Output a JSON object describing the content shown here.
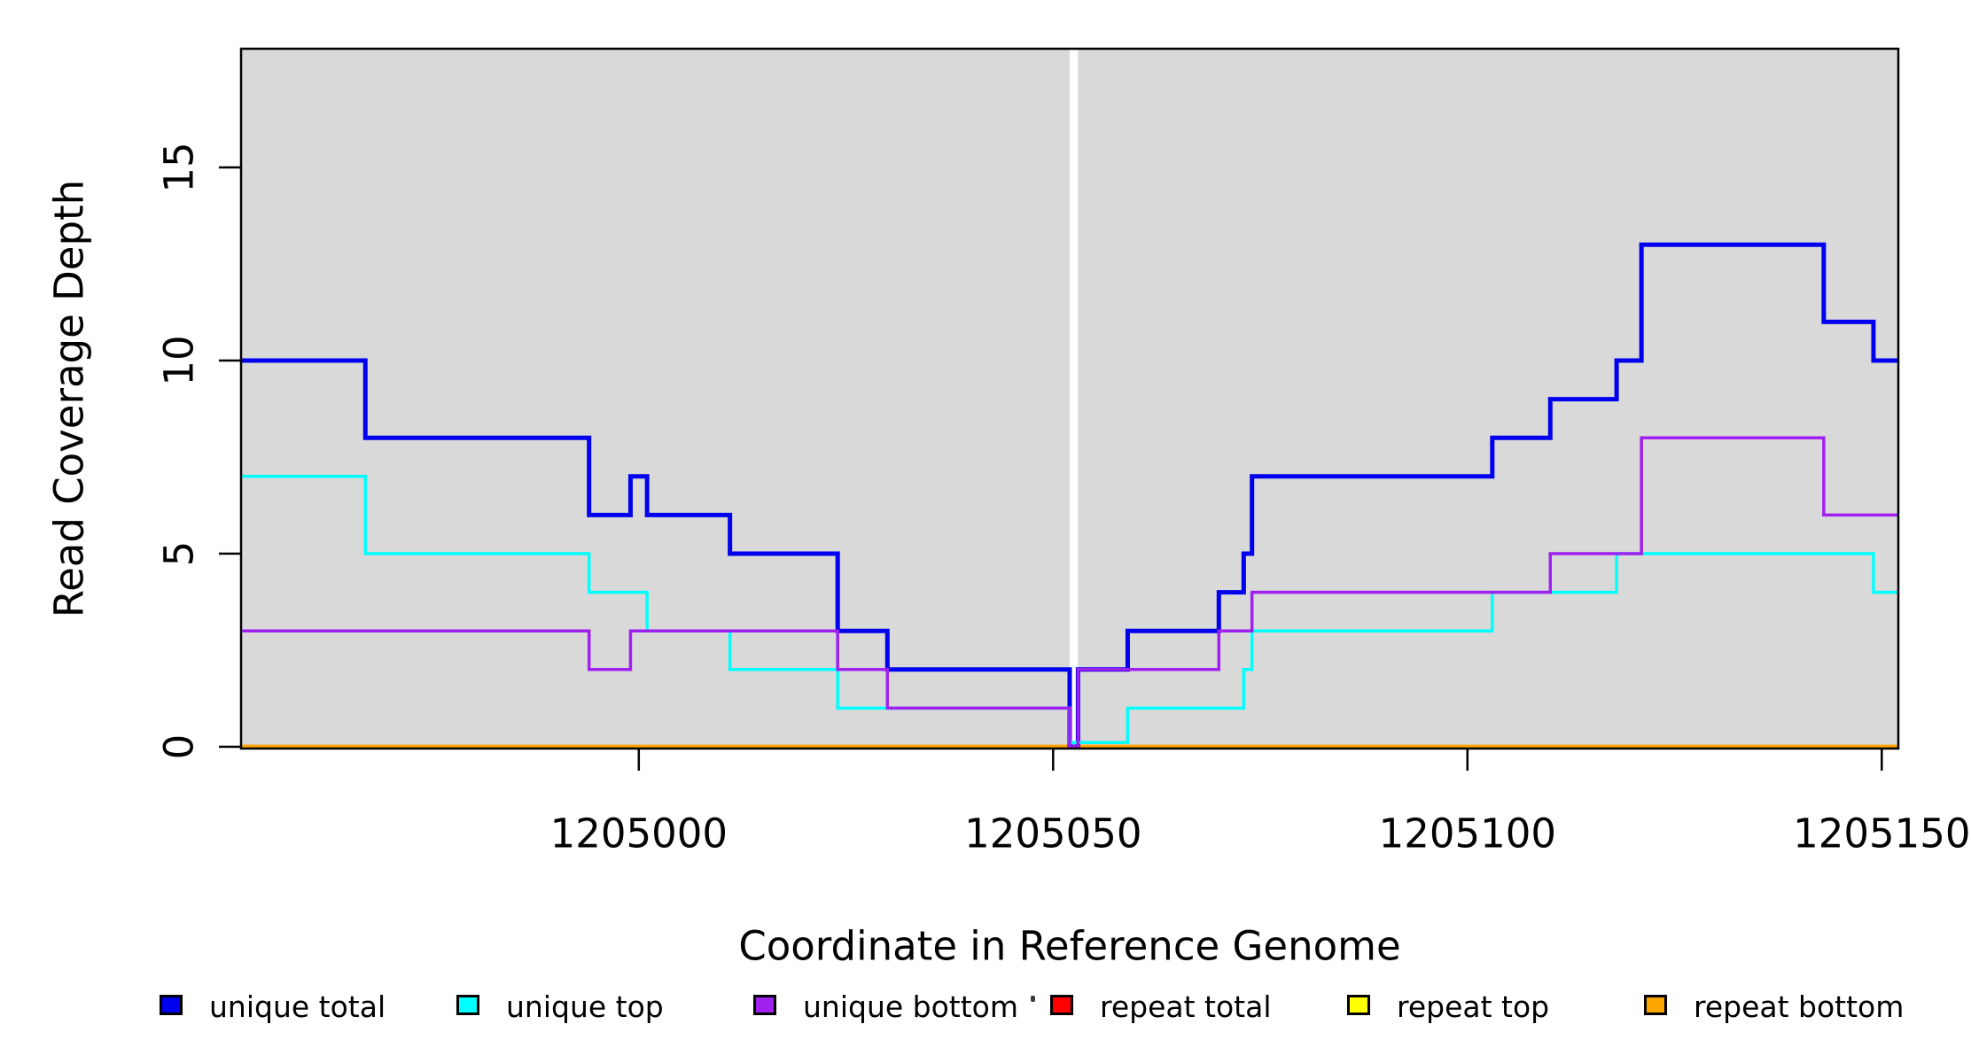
{
  "figure": {
    "xlabel": "Coordinate in Reference Genome",
    "ylabel": "Read Coverage Depth",
    "plot_background_color": "#D9D9D9",
    "gap_stripe_color": "#FFFFFF"
  },
  "chart_data": {
    "type": "line",
    "subtype": "step-coverage",
    "title": "",
    "xlabel": "Coordinate in Reference Genome",
    "ylabel": "Read Coverage Depth",
    "x_range": [
      1204952,
      1205152
    ],
    "y_range": [
      0,
      18
    ],
    "x_ticks": [
      1205000,
      1205050,
      1205100,
      1205150
    ],
    "x_tick_labels": [
      "1205000",
      "1205050",
      "1205100",
      "1205150"
    ],
    "y_ticks": [
      0,
      5,
      10,
      15
    ],
    "y_tick_labels": [
      "0",
      "5",
      "10",
      "15"
    ],
    "grid": false,
    "plot_background": "#D9D9D9",
    "gap_region": {
      "start": 1205052,
      "end": 1205053,
      "color": "#FFFFFF",
      "note": "white vertical stripe, full plot height; all unique-series values drop to 0 here"
    },
    "series": [
      {
        "name": "unique total",
        "color": "#0000EE",
        "start_value": 10,
        "changes": [
          [
            1204967,
            8
          ],
          [
            1204994,
            6
          ],
          [
            1204999,
            7
          ],
          [
            1205001,
            6
          ],
          [
            1205011,
            5
          ],
          [
            1205024,
            3
          ],
          [
            1205030,
            2
          ],
          [
            1205052,
            0
          ],
          [
            1205053,
            2
          ],
          [
            1205059,
            3
          ],
          [
            1205070,
            4
          ],
          [
            1205073,
            5
          ],
          [
            1205074,
            7
          ],
          [
            1205103,
            8
          ],
          [
            1205110,
            9
          ],
          [
            1205118,
            10
          ],
          [
            1205121,
            13
          ],
          [
            1205143,
            11
          ],
          [
            1205149,
            10
          ]
        ]
      },
      {
        "name": "unique top",
        "color": "#00FFFF",
        "start_value": 7,
        "changes": [
          [
            1204967,
            5
          ],
          [
            1204994,
            4
          ],
          [
            1205001,
            3
          ],
          [
            1205011,
            2
          ],
          [
            1205024,
            1
          ],
          [
            1205052,
            0
          ],
          [
            1205059,
            1
          ],
          [
            1205073,
            2
          ],
          [
            1205074,
            3
          ],
          [
            1205103,
            4
          ],
          [
            1205118,
            5
          ],
          [
            1205149,
            4
          ]
        ]
      },
      {
        "name": "unique bottom",
        "color": "#A020F0",
        "start_value": 3,
        "changes": [
          [
            1204994,
            2
          ],
          [
            1204999,
            3
          ],
          [
            1205024,
            2
          ],
          [
            1205030,
            1
          ],
          [
            1205052,
            0
          ],
          [
            1205053,
            2
          ],
          [
            1205070,
            3
          ],
          [
            1205074,
            4
          ],
          [
            1205110,
            5
          ],
          [
            1205121,
            8
          ],
          [
            1205143,
            6
          ]
        ]
      },
      {
        "name": "repeat total",
        "color": "#FF0000",
        "start_value": 0,
        "changes": []
      },
      {
        "name": "repeat top",
        "color": "#FFFF00",
        "start_value": 0,
        "changes": []
      },
      {
        "name": "repeat bottom",
        "color": "#FFA500",
        "start_value": 0,
        "changes": []
      }
    ],
    "legend_position": "bottom"
  },
  "legend": {
    "items": [
      {
        "label": "unique total",
        "color": "#0000EE"
      },
      {
        "label": "unique top",
        "color": "#00FFFF"
      },
      {
        "label": "unique bottom",
        "color": "#A020F0"
      },
      {
        "label": "repeat total",
        "color": "#FF0000"
      },
      {
        "label": "repeat top",
        "color": "#FFFF00"
      },
      {
        "label": "repeat bottom",
        "color": "#FFA500"
      }
    ]
  }
}
